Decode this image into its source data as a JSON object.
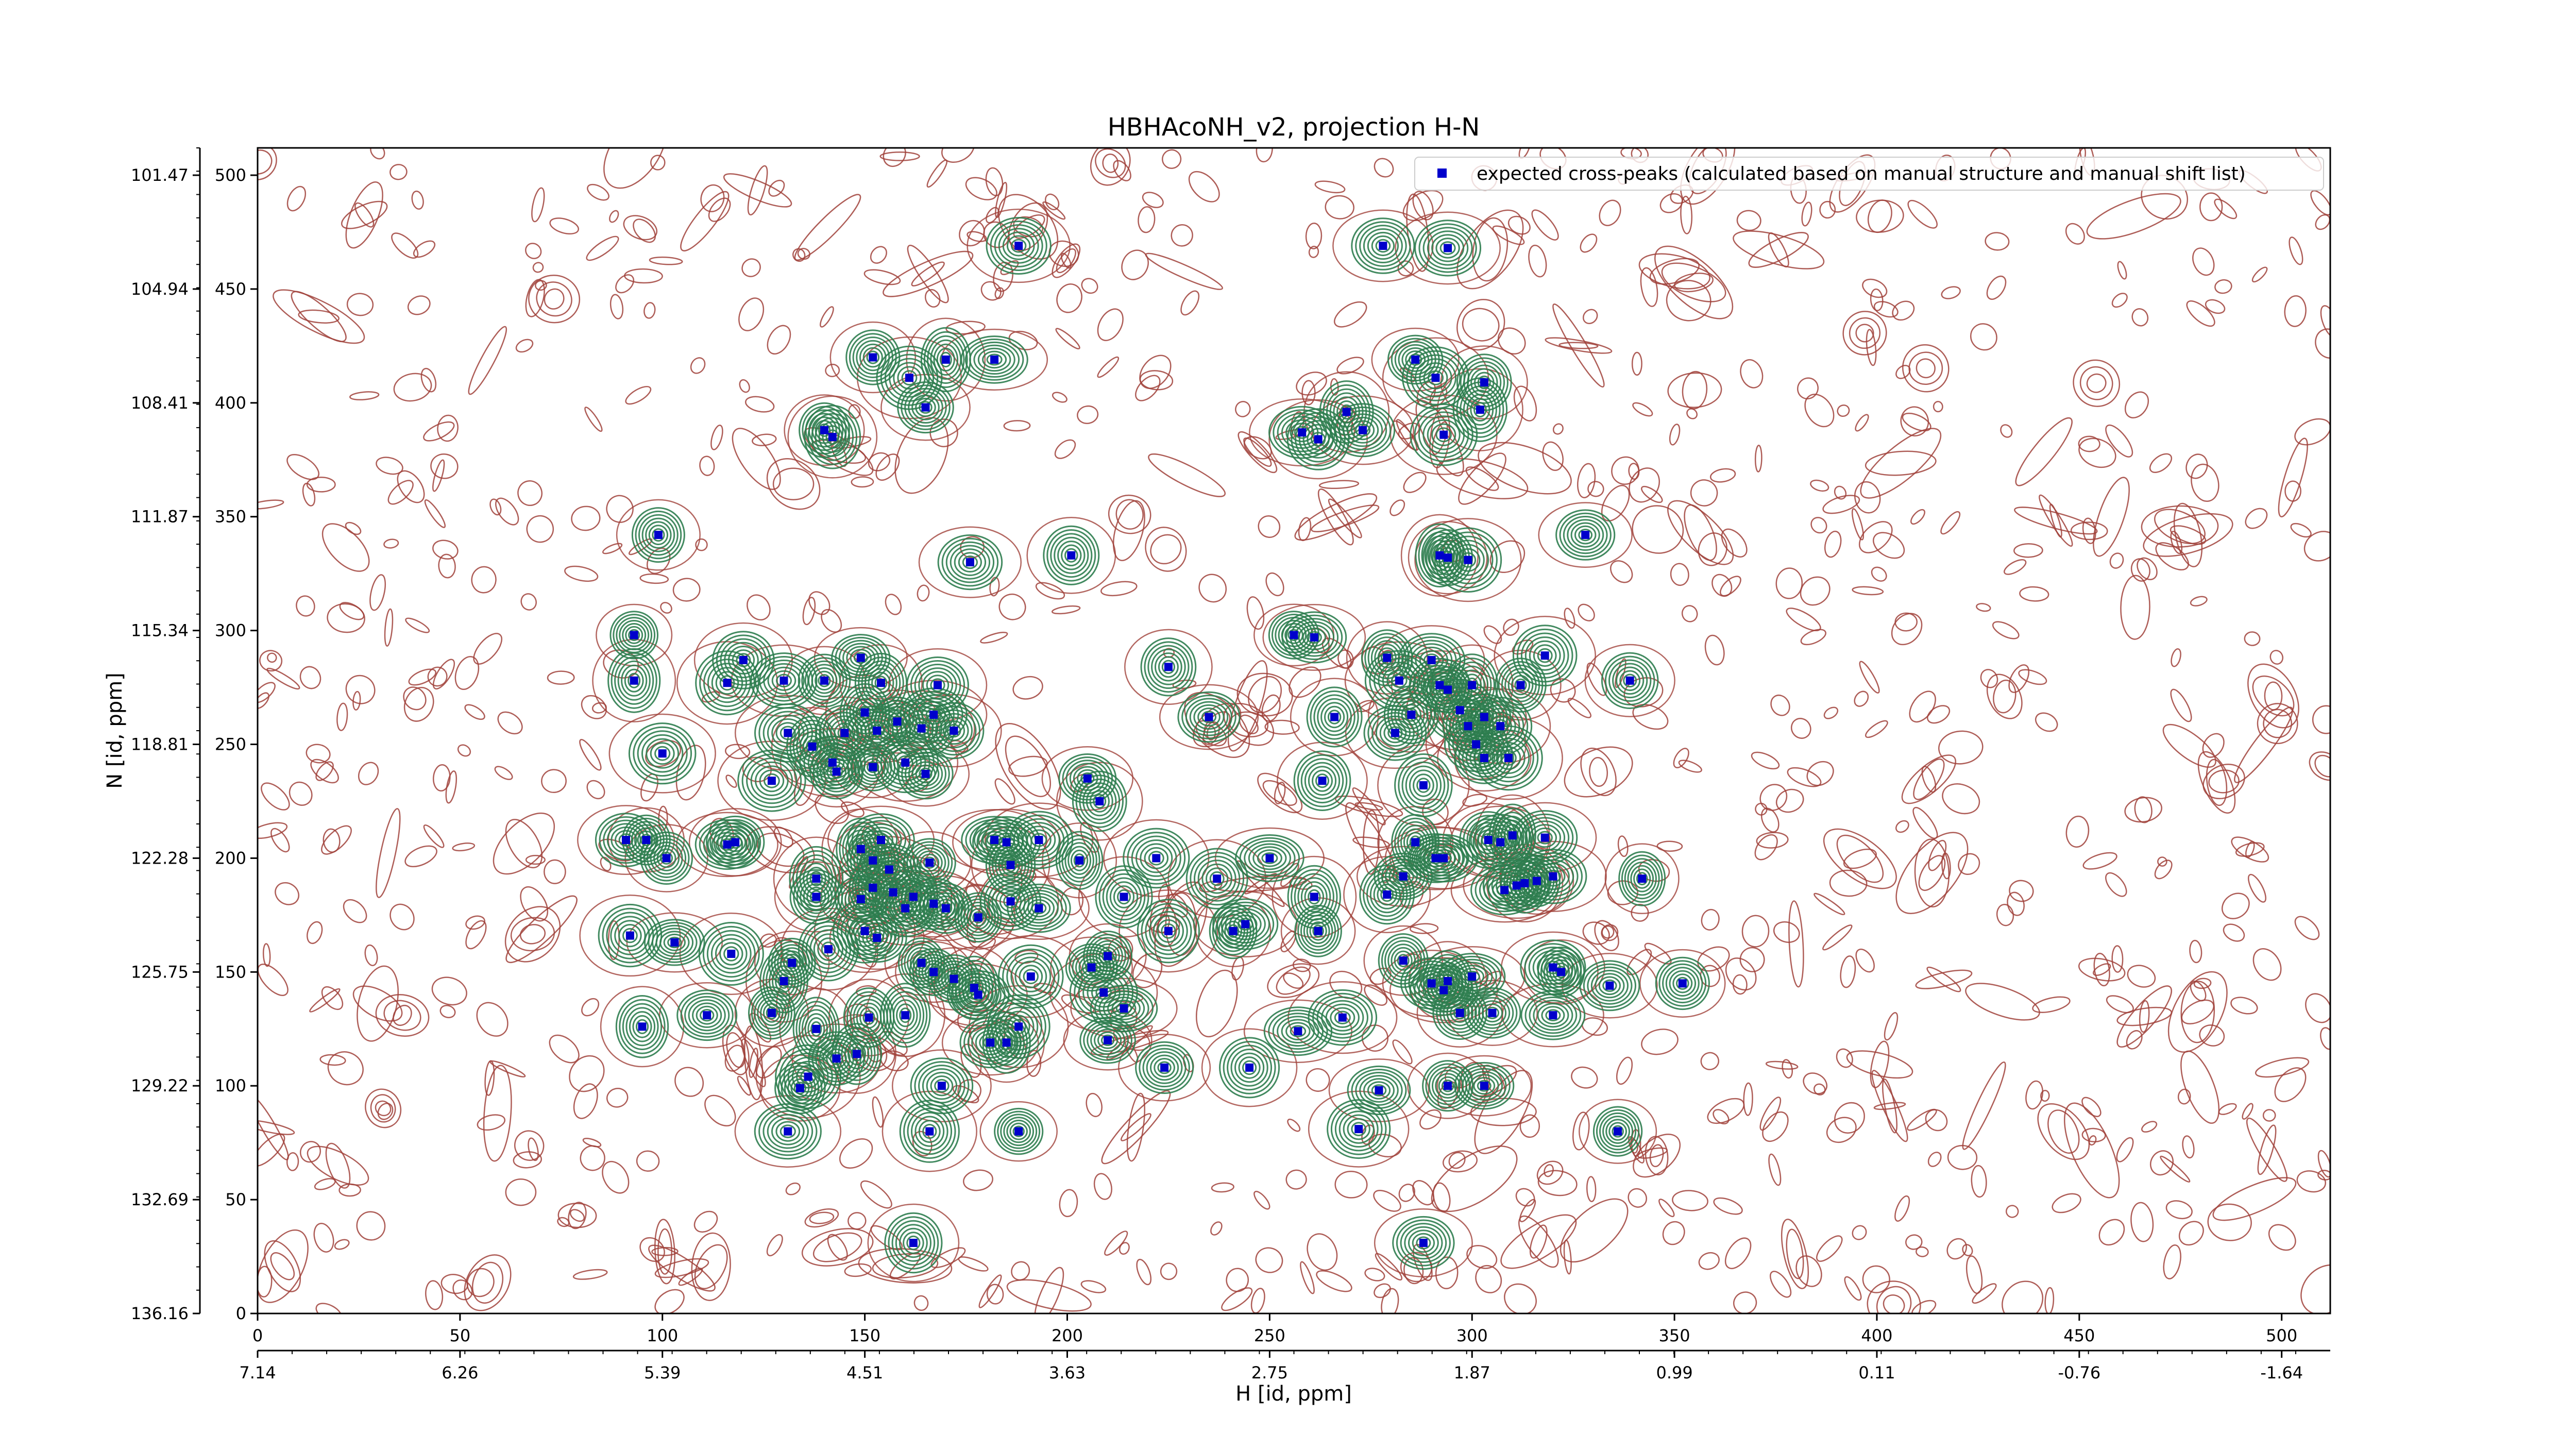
{
  "chart_data": {
    "type": "scatter",
    "title": "HBHAcoNH_v2, projection H-N",
    "xlabel": "H [id, ppm]",
    "ylabel": "N [id, ppm]",
    "xlim": [
      0,
      512
    ],
    "ylim": [
      0,
      512
    ],
    "x_index_ticks": [
      0,
      50,
      100,
      150,
      200,
      250,
      300,
      350,
      400,
      450,
      500
    ],
    "y_index_ticks": [
      0,
      50,
      100,
      150,
      200,
      250,
      300,
      350,
      400,
      450,
      500
    ],
    "x_ppm_ticks": [
      "7.14",
      "6.26",
      "5.39",
      "4.51",
      "3.63",
      "2.75",
      "1.87",
      "0.99",
      "0.11",
      "-0.76",
      "-1.64"
    ],
    "y_ppm_ticks": [
      "136.16",
      "132.69",
      "129.22",
      "125.75",
      "122.28",
      "118.81",
      "115.34",
      "111.87",
      "108.41",
      "104.94",
      "101.47"
    ],
    "grid": false,
    "legend": {
      "position": "top-right",
      "label": "expected cross-peaks (calculated based on manual structure and manual shift list)"
    },
    "colors": {
      "peak_marker": "#0000cc",
      "positive_contour": "#2e7d4f",
      "negative_contour": "#a0413a"
    },
    "series": [
      {
        "name": "expected cross-peaks (calculated based on manual structure and manual shift list)",
        "points": [
          [
            188,
            469
          ],
          [
            278,
            469
          ],
          [
            294,
            468
          ],
          [
            152,
            420
          ],
          [
            170,
            419
          ],
          [
            182,
            419
          ],
          [
            286,
            419
          ],
          [
            161,
            411
          ],
          [
            291,
            411
          ],
          [
            303,
            409
          ],
          [
            165,
            398
          ],
          [
            302,
            397
          ],
          [
            140,
            388
          ],
          [
            142,
            385
          ],
          [
            258,
            387
          ],
          [
            262,
            384
          ],
          [
            269,
            396
          ],
          [
            273,
            388
          ],
          [
            293,
            386
          ],
          [
            99,
            342
          ],
          [
            176,
            330
          ],
          [
            201,
            333
          ],
          [
            292,
            333
          ],
          [
            294,
            332
          ],
          [
            299,
            331
          ],
          [
            328,
            342
          ],
          [
            93,
            298
          ],
          [
            256,
            298
          ],
          [
            261,
            297
          ],
          [
            93,
            278
          ],
          [
            116,
            277
          ],
          [
            120,
            287
          ],
          [
            130,
            278
          ],
          [
            140,
            278
          ],
          [
            149,
            288
          ],
          [
            154,
            277
          ],
          [
            168,
            276
          ],
          [
            225,
            284
          ],
          [
            279,
            288
          ],
          [
            282,
            278
          ],
          [
            290,
            287
          ],
          [
            292,
            276
          ],
          [
            294,
            274
          ],
          [
            300,
            276
          ],
          [
            312,
            276
          ],
          [
            318,
            289
          ],
          [
            339,
            278
          ],
          [
            131,
            255
          ],
          [
            137,
            249
          ],
          [
            145,
            255
          ],
          [
            150,
            264
          ],
          [
            153,
            256
          ],
          [
            158,
            260
          ],
          [
            164,
            257
          ],
          [
            167,
            263
          ],
          [
            172,
            256
          ],
          [
            235,
            262
          ],
          [
            266,
            262
          ],
          [
            281,
            255
          ],
          [
            285,
            263
          ],
          [
            297,
            265
          ],
          [
            299,
            258
          ],
          [
            303,
            262
          ],
          [
            307,
            258
          ],
          [
            301,
            250
          ],
          [
            303,
            244
          ],
          [
            309,
            244
          ],
          [
            100,
            246
          ],
          [
            127,
            234
          ],
          [
            143,
            238
          ],
          [
            142,
            242
          ],
          [
            152,
            240
          ],
          [
            160,
            242
          ],
          [
            165,
            237
          ],
          [
            205,
            235
          ],
          [
            208,
            225
          ],
          [
            263,
            234
          ],
          [
            288,
            232
          ],
          [
            91,
            208
          ],
          [
            96,
            208
          ],
          [
            101,
            200
          ],
          [
            116,
            206
          ],
          [
            118,
            207
          ],
          [
            138,
            191
          ],
          [
            149,
            204
          ],
          [
            154,
            208
          ],
          [
            152,
            199
          ],
          [
            156,
            195
          ],
          [
            166,
            198
          ],
          [
            182,
            208
          ],
          [
            185,
            207
          ],
          [
            186,
            197
          ],
          [
            193,
            208
          ],
          [
            203,
            199
          ],
          [
            222,
            200
          ],
          [
            237,
            191
          ],
          [
            250,
            200
          ],
          [
            286,
            207
          ],
          [
            291,
            200
          ],
          [
            293,
            200
          ],
          [
            304,
            208
          ],
          [
            307,
            207
          ],
          [
            310,
            210
          ],
          [
            318,
            209
          ],
          [
            320,
            192
          ],
          [
            316,
            190
          ],
          [
            342,
            191
          ],
          [
            138,
            183
          ],
          [
            149,
            182
          ],
          [
            152,
            187
          ],
          [
            157,
            185
          ],
          [
            160,
            178
          ],
          [
            162,
            183
          ],
          [
            167,
            180
          ],
          [
            170,
            178
          ],
          [
            178,
            174
          ],
          [
            186,
            181
          ],
          [
            193,
            178
          ],
          [
            214,
            183
          ],
          [
            261,
            183
          ],
          [
            279,
            184
          ],
          [
            283,
            192
          ],
          [
            308,
            186
          ],
          [
            311,
            188
          ],
          [
            313,
            189
          ],
          [
            92,
            166
          ],
          [
            103,
            163
          ],
          [
            117,
            158
          ],
          [
            130,
            146
          ],
          [
            132,
            154
          ],
          [
            141,
            160
          ],
          [
            150,
            168
          ],
          [
            153,
            165
          ],
          [
            164,
            154
          ],
          [
            167,
            150
          ],
          [
            172,
            147
          ],
          [
            177,
            143
          ],
          [
            178,
            140
          ],
          [
            191,
            148
          ],
          [
            206,
            152
          ],
          [
            210,
            157
          ],
          [
            225,
            168
          ],
          [
            241,
            168
          ],
          [
            244,
            171
          ],
          [
            262,
            168
          ],
          [
            283,
            155
          ],
          [
            290,
            145
          ],
          [
            294,
            146
          ],
          [
            300,
            148
          ],
          [
            320,
            152
          ],
          [
            322,
            150
          ],
          [
            95,
            126
          ],
          [
            111,
            131
          ],
          [
            127,
            132
          ],
          [
            138,
            125
          ],
          [
            151,
            130
          ],
          [
            160,
            131
          ],
          [
            181,
            119
          ],
          [
            188,
            126
          ],
          [
            209,
            141
          ],
          [
            214,
            134
          ],
          [
            257,
            124
          ],
          [
            268,
            130
          ],
          [
            293,
            142
          ],
          [
            297,
            132
          ],
          [
            305,
            132
          ],
          [
            320,
            131
          ],
          [
            334,
            144
          ],
          [
            352,
            145
          ],
          [
            134,
            99
          ],
          [
            136,
            104
          ],
          [
            143,
            112
          ],
          [
            148,
            114
          ],
          [
            169,
            100
          ],
          [
            185,
            119
          ],
          [
            210,
            120
          ],
          [
            224,
            108
          ],
          [
            245,
            108
          ],
          [
            277,
            98
          ],
          [
            294,
            100
          ],
          [
            303,
            100
          ],
          [
            131,
            80
          ],
          [
            166,
            80
          ],
          [
            188,
            80
          ],
          [
            272,
            81
          ],
          [
            336,
            80
          ],
          [
            162,
            31
          ],
          [
            288,
            31
          ]
        ]
      }
    ]
  }
}
